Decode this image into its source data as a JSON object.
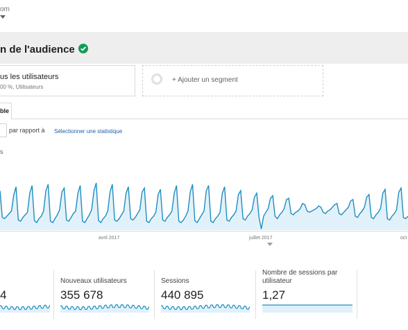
{
  "breadcrumb": {
    "text": "om"
  },
  "header": {
    "title": "n de l'audience",
    "verified_color": "#0f9d58"
  },
  "segments": {
    "active": {
      "title": "us les utilisateurs",
      "subtitle": "00 %, Utilisateurs"
    },
    "add": {
      "label": "+ Ajouter un segment"
    }
  },
  "tabs": [
    {
      "label": "ble"
    }
  ],
  "compare": {
    "vs_label": "par rapport à",
    "select_stat": "Sélectionner une statistique"
  },
  "chart_legend": "s",
  "chart_data": {
    "type": "area",
    "title": "",
    "series_color": "#1f8dbf",
    "fill_color": "#e1f1fa",
    "x_ticks": [
      "avril 2017",
      "juillet 2017",
      "oct"
    ],
    "y_norm_min": 0,
    "y_norm_max": 1,
    "values": [
      0.62,
      0.2,
      0.18,
      0.22,
      0.26,
      0.3,
      0.55,
      0.68,
      0.16,
      0.14,
      0.2,
      0.24,
      0.28,
      0.58,
      0.7,
      0.15,
      0.12,
      0.18,
      0.22,
      0.3,
      0.62,
      0.72,
      0.14,
      0.12,
      0.18,
      0.24,
      0.32,
      0.6,
      0.66,
      0.16,
      0.14,
      0.2,
      0.26,
      0.3,
      0.58,
      0.7,
      0.14,
      0.12,
      0.18,
      0.24,
      0.32,
      0.62,
      0.74,
      0.15,
      0.12,
      0.18,
      0.22,
      0.3,
      0.6,
      0.72,
      0.16,
      0.14,
      0.18,
      0.24,
      0.3,
      0.58,
      0.68,
      0.18,
      0.16,
      0.2,
      0.26,
      0.32,
      0.6,
      0.66,
      0.14,
      0.12,
      0.18,
      0.22,
      0.28,
      0.56,
      0.64,
      0.16,
      0.14,
      0.2,
      0.24,
      0.3,
      0.58,
      0.7,
      0.14,
      0.12,
      0.16,
      0.22,
      0.3,
      0.6,
      0.72,
      0.15,
      0.12,
      0.18,
      0.24,
      0.3,
      0.62,
      0.7,
      0.14,
      0.12,
      0.18,
      0.22,
      0.28,
      0.58,
      0.68,
      0.16,
      0.14,
      0.2,
      0.24,
      0.3,
      0.56,
      0.62,
      0.18,
      0.16,
      0.22,
      0.26,
      0.32,
      0.52,
      0.58,
      0.2,
      0.02,
      0.22,
      0.28,
      0.34,
      0.5,
      0.54,
      0.22,
      0.18,
      0.24,
      0.28,
      0.34,
      0.48,
      0.5,
      0.26,
      0.24,
      0.28,
      0.3,
      0.34,
      0.42,
      0.4,
      0.3,
      0.28,
      0.3,
      0.32,
      0.34,
      0.38,
      0.36,
      0.28,
      0.26,
      0.3,
      0.32,
      0.36,
      0.4,
      0.42,
      0.26,
      0.24,
      0.28,
      0.32,
      0.36,
      0.46,
      0.48,
      0.22,
      0.2,
      0.26,
      0.3,
      0.36,
      0.52,
      0.56,
      0.2,
      0.18,
      0.24,
      0.28,
      0.34,
      0.58,
      0.64,
      0.18,
      0.16,
      0.22,
      0.26,
      0.32,
      0.6,
      0.66,
      0.2,
      0.18,
      0.22
    ]
  },
  "metrics": [
    {
      "label": "",
      "value": "4"
    },
    {
      "label": "Nouveaux utilisateurs",
      "value": "355 678"
    },
    {
      "label": "Sessions",
      "value": "440 895"
    },
    {
      "label": "Nombre de sessions par utilisateur",
      "value": "1,27"
    }
  ]
}
